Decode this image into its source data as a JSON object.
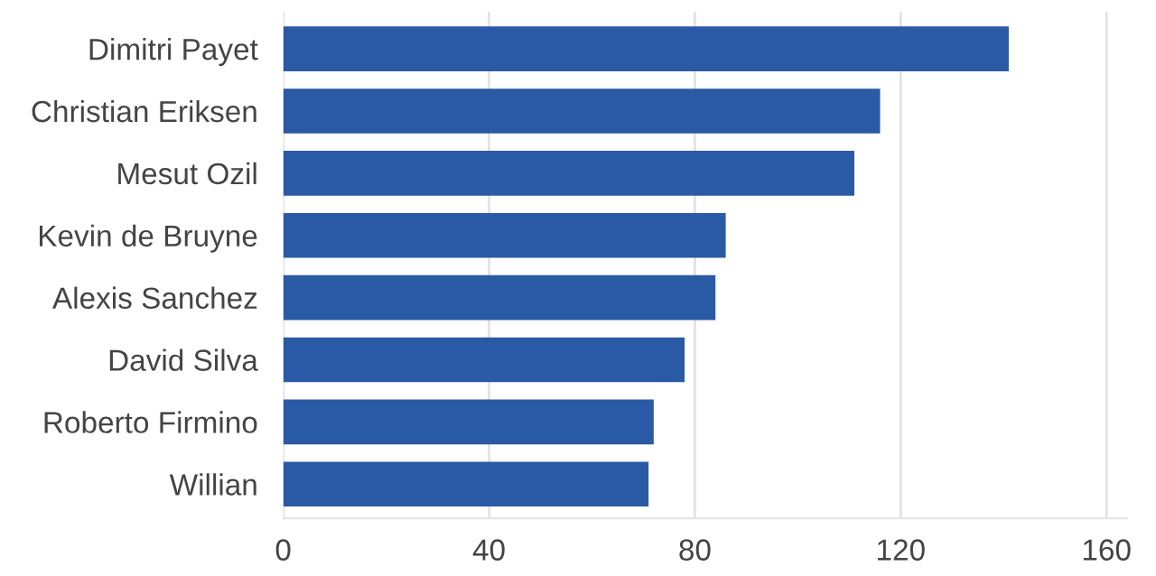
{
  "chart_data": {
    "type": "bar",
    "orientation": "horizontal",
    "categories": [
      "Dimitri Payet",
      "Christian Eriksen",
      "Mesut Ozil",
      "Kevin de Bruyne",
      "Alexis Sanchez",
      "David Silva",
      "Roberto Firmino",
      "Willian"
    ],
    "values": [
      141,
      116,
      111,
      86,
      84,
      78,
      72,
      71
    ],
    "color": "#2a5aa6",
    "xlim": [
      0,
      164
    ],
    "xticks": [
      0,
      40,
      80,
      120,
      160
    ],
    "grid": "x",
    "legend": false
  }
}
